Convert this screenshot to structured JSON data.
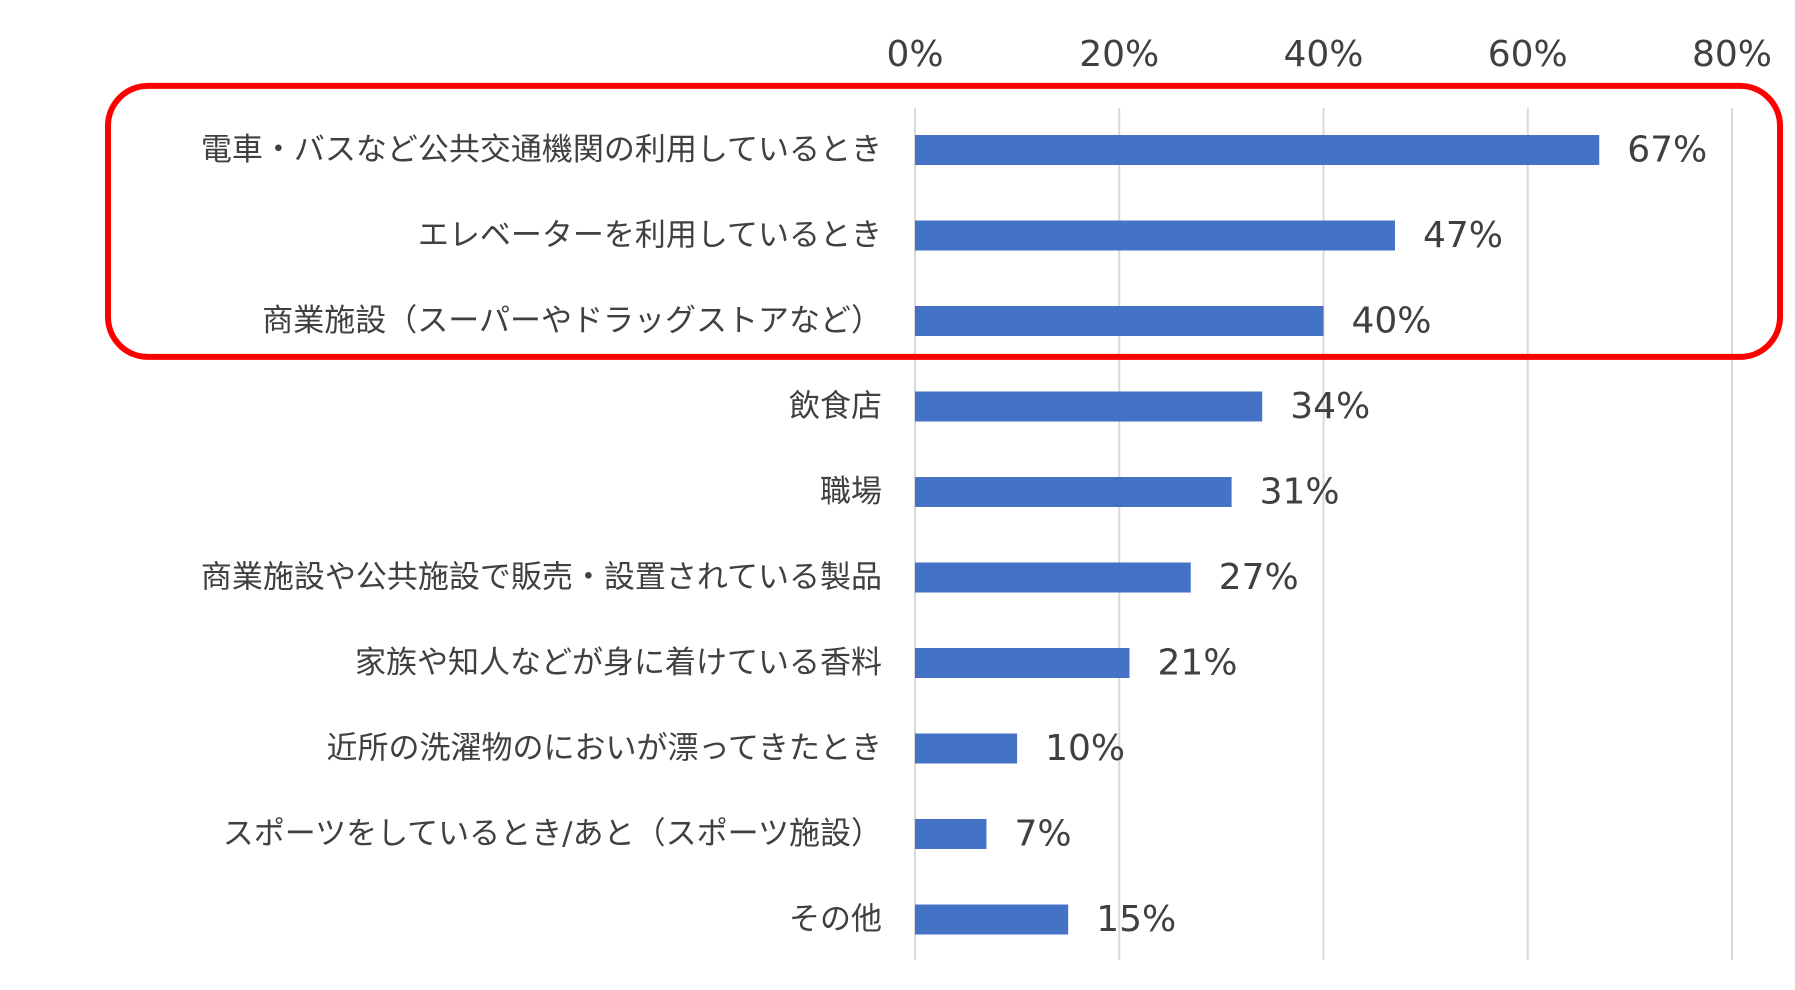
{
  "chart_data": {
    "type": "bar",
    "orientation": "horizontal",
    "categories": [
      "電車・バスなど公共交通機関の利用しているとき",
      "エレベーターを利用しているとき",
      "商業施設（スーパーやドラッグストアなど）",
      "飲食店",
      "職場",
      "商業施設や公共施設で販売・設置されている製品",
      "家族や知人などが身に着けている香料",
      "近所の洗濯物のにおいが漂ってきたとき",
      "スポーツをしているとき/あと（スポーツ施設）",
      "その他"
    ],
    "values": [
      67,
      47,
      40,
      34,
      31,
      27,
      21,
      10,
      7,
      15
    ],
    "value_labels": [
      "67%",
      "47%",
      "40%",
      "34%",
      "31%",
      "27%",
      "21%",
      "10%",
      "7%",
      "15%"
    ],
    "xlim": [
      0,
      80
    ],
    "xticks": [
      0,
      20,
      40,
      60,
      80
    ],
    "xtick_labels": [
      "0%",
      "20%",
      "40%",
      "60%",
      "80%"
    ],
    "axis_position": "top",
    "grid": true,
    "highlight": {
      "categories_count": 3,
      "color": "#ff0000",
      "style": "rounded-rectangle-outline"
    },
    "bar_color": "#4472c4",
    "grid_color": "#d9d9d9",
    "title": "",
    "xlabel": "",
    "ylabel": ""
  }
}
